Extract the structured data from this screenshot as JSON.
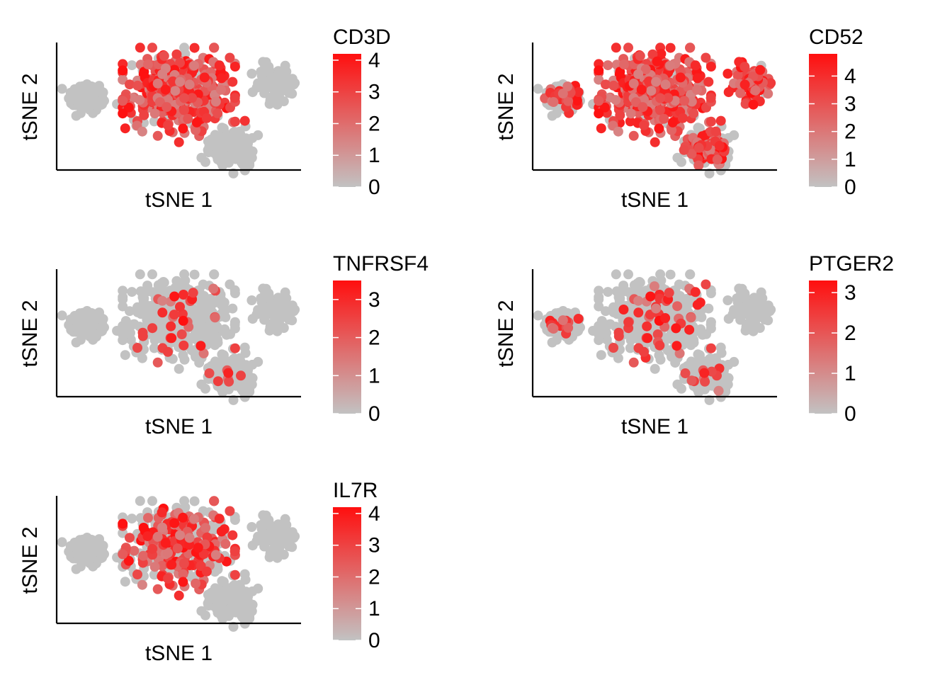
{
  "colors": {
    "low": "#c2c2c2",
    "high": "#ff0f0f",
    "axis": "#000000",
    "background": "#ffffff"
  },
  "chart_data": [
    {
      "type": "scatter",
      "title": "",
      "xlabel": "tSNE 1",
      "ylabel": "tSNE 2",
      "color_scale": {
        "name": "CD3D",
        "min": 0,
        "max": 4.2,
        "ticks": [
          0,
          1,
          2,
          3,
          4
        ],
        "low_color": "#c2c2c2",
        "high_color": "#ff0f0f"
      },
      "expression_profile": {
        "main_cluster": 0.82,
        "small_cluster_left": 0.0,
        "small_cluster_right": 0.0,
        "bottom_cluster": 0.0,
        "outlier_point_value": 3.4
      },
      "grid": false,
      "legend_placement": "right"
    },
    {
      "type": "scatter",
      "title": "",
      "xlabel": "tSNE 1",
      "ylabel": "tSNE 2",
      "color_scale": {
        "name": "CD52",
        "min": 0,
        "max": 4.8,
        "ticks": [
          0,
          1,
          2,
          3,
          4
        ],
        "low_color": "#c2c2c2",
        "high_color": "#ff0f0f"
      },
      "expression_profile": {
        "main_cluster": 0.88,
        "small_cluster_left": 0.35,
        "small_cluster_right": 0.8,
        "bottom_cluster": 0.45,
        "outlier_point_value": 3.8
      },
      "grid": false,
      "legend_placement": "right"
    },
    {
      "type": "scatter",
      "title": "",
      "xlabel": "tSNE 1",
      "ylabel": "tSNE 2",
      "color_scale": {
        "name": "TNFRSF4",
        "min": 0,
        "max": 3.5,
        "ticks": [
          0,
          1,
          2,
          3
        ],
        "low_color": "#c2c2c2",
        "high_color": "#ff0f0f"
      },
      "expression_profile": {
        "main_cluster": 0.07,
        "small_cluster_left": 0.0,
        "small_cluster_right": 0.0,
        "bottom_cluster": 0.06,
        "outlier_point_value": 0.0
      },
      "grid": false,
      "legend_placement": "right"
    },
    {
      "type": "scatter",
      "title": "",
      "xlabel": "tSNE 1",
      "ylabel": "tSNE 2",
      "color_scale": {
        "name": "PTGER2",
        "min": 0,
        "max": 3.3,
        "ticks": [
          0,
          1,
          2,
          3
        ],
        "low_color": "#c2c2c2",
        "high_color": "#ff0f0f"
      },
      "expression_profile": {
        "main_cluster": 0.1,
        "small_cluster_left": 0.15,
        "small_cluster_right": 0.0,
        "bottom_cluster": 0.08,
        "outlier_point_value": 0.0
      },
      "grid": false,
      "legend_placement": "right"
    },
    {
      "type": "scatter",
      "title": "",
      "xlabel": "tSNE 1",
      "ylabel": "tSNE 2",
      "color_scale": {
        "name": "IL7R",
        "min": 0,
        "max": 4.2,
        "ticks": [
          0,
          1,
          2,
          3,
          4
        ],
        "low_color": "#c2c2c2",
        "high_color": "#ff0f0f"
      },
      "expression_profile": {
        "main_cluster": 0.4,
        "small_cluster_left": 0.0,
        "small_cluster_right": 0.0,
        "bottom_cluster": 0.0,
        "outlier_point_value": 0.0
      },
      "grid": false,
      "legend_placement": "right"
    }
  ]
}
